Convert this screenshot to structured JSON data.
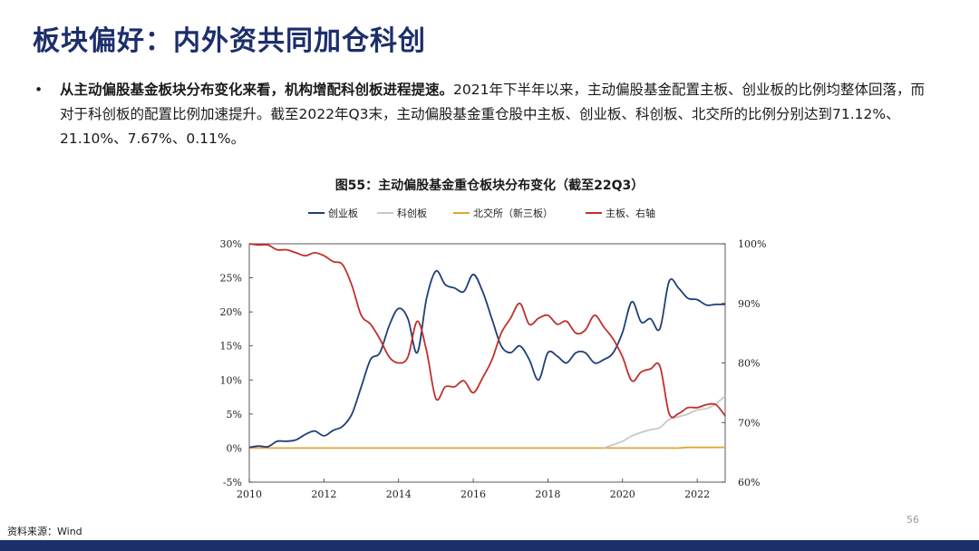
{
  "slide": {
    "title": "板块偏好：内外资共同加仓科创",
    "bullet_dot": "•",
    "bullet_bold": "从主动偏股基金板块分布变化来看，机构增配科创板进程提速。",
    "bullet_rest": "2021年下半年以来，主动偏股基金配置主板、创业板的比例均整体回落，而对于科创板的配置比例加速提升。截至2022年Q3末，主动偏股基金重仓股中主板、创业板、科创板、北交所的比例分别达到71.12%、21.10%、7.67%、0.11%。",
    "figure_title": "图55：主动偏股基金重仓板块分布变化（截至22Q3）",
    "source": "资料来源：Wind",
    "page_number": "56"
  },
  "colors": {
    "title": "#1c2f6b",
    "footer_bar": "#1c2f6b",
    "chinext": "#1f3f7a",
    "star": "#c8c8c8",
    "bse": "#e3a730",
    "main": "#c0302b"
  },
  "chart_data": {
    "type": "line",
    "title": "图55：主动偏股基金重仓板块分布变化（截至22Q3）",
    "legend_position": "top",
    "grid": false,
    "x_axis": {
      "range": [
        2010,
        2022.75
      ],
      "ticks": [
        "2010",
        "2012",
        "2014",
        "2016",
        "2018",
        "2020",
        "2022"
      ]
    },
    "y_left": {
      "range": [
        -5,
        30
      ],
      "ticks": [
        "-5%",
        "0%",
        "5%",
        "10%",
        "15%",
        "20%",
        "25%",
        "30%"
      ]
    },
    "y_right": {
      "range": [
        60,
        100
      ],
      "ticks": [
        "60%",
        "70%",
        "80%",
        "90%",
        "100%"
      ]
    },
    "x": [
      2010.0,
      2010.25,
      2010.5,
      2010.75,
      2011.0,
      2011.25,
      2011.5,
      2011.75,
      2012.0,
      2012.25,
      2012.5,
      2012.75,
      2013.0,
      2013.25,
      2013.5,
      2013.75,
      2014.0,
      2014.25,
      2014.5,
      2014.75,
      2015.0,
      2015.25,
      2015.5,
      2015.75,
      2016.0,
      2016.25,
      2016.5,
      2016.75,
      2017.0,
      2017.25,
      2017.5,
      2017.75,
      2018.0,
      2018.25,
      2018.5,
      2018.75,
      2019.0,
      2019.25,
      2019.5,
      2019.75,
      2020.0,
      2020.25,
      2020.5,
      2020.75,
      2021.0,
      2021.25,
      2021.5,
      2021.75,
      2022.0,
      2022.25,
      2022.5,
      2022.75
    ],
    "series": [
      {
        "name": "创业板",
        "axis": "left",
        "color": "#1f3f7a",
        "values": [
          0.1,
          0.3,
          0.2,
          1.0,
          1.0,
          1.2,
          2.0,
          2.5,
          1.8,
          2.6,
          3.2,
          5.0,
          9.0,
          13.0,
          14.0,
          18.0,
          20.5,
          19.0,
          14.0,
          22.0,
          26.0,
          24.0,
          23.5,
          23.0,
          25.5,
          23.0,
          19.0,
          15.0,
          14.0,
          15.0,
          13.0,
          10.0,
          14.0,
          13.5,
          12.5,
          14.0,
          14.0,
          12.5,
          13.0,
          14.0,
          17.0,
          21.5,
          18.5,
          19.0,
          17.5,
          24.5,
          23.5,
          22.0,
          21.8,
          21.0,
          21.1,
          21.1
        ]
      },
      {
        "name": "科创板",
        "axis": "left",
        "color": "#c8c8c8",
        "values": [
          null,
          null,
          null,
          null,
          null,
          null,
          null,
          null,
          null,
          null,
          null,
          null,
          null,
          null,
          null,
          null,
          null,
          null,
          null,
          null,
          null,
          null,
          null,
          null,
          null,
          null,
          null,
          null,
          null,
          null,
          null,
          null,
          null,
          null,
          null,
          null,
          null,
          null,
          0.0,
          0.5,
          1.0,
          1.8,
          2.3,
          2.7,
          3.0,
          4.2,
          4.6,
          5.0,
          5.6,
          5.8,
          6.5,
          7.67
        ]
      },
      {
        "name": "北交所（新三板）",
        "axis": "left",
        "color": "#e3a730",
        "values": [
          0.0,
          0.0,
          0.0,
          0.0,
          0.0,
          0.0,
          0.0,
          0.0,
          0.0,
          0.0,
          0.0,
          0.0,
          0.0,
          0.0,
          0.0,
          0.0,
          0.0,
          0.0,
          0.0,
          0.0,
          0.0,
          0.0,
          0.0,
          0.0,
          0.0,
          0.0,
          0.0,
          0.0,
          0.0,
          0.0,
          0.0,
          0.0,
          0.0,
          0.0,
          0.0,
          0.0,
          0.0,
          0.0,
          0.0,
          0.0,
          0.0,
          0.0,
          0.0,
          0.0,
          0.0,
          0.0,
          0.0,
          0.1,
          0.1,
          0.1,
          0.1,
          0.11
        ]
      },
      {
        "name": "主板、右轴",
        "axis": "right",
        "color": "#c0302b",
        "values": [
          100.0,
          99.8,
          99.8,
          99.0,
          99.0,
          98.5,
          98.0,
          98.5,
          98.0,
          97.0,
          96.5,
          93.0,
          88.0,
          86.5,
          84.0,
          81.0,
          80.0,
          81.0,
          87.0,
          82.0,
          74.0,
          76.0,
          76.0,
          77.0,
          75.0,
          77.5,
          80.5,
          85.0,
          87.5,
          90.0,
          86.5,
          87.5,
          88.0,
          86.5,
          87.0,
          85.0,
          85.5,
          88.0,
          86.0,
          84.0,
          81.0,
          77.0,
          78.5,
          79.0,
          79.5,
          71.5,
          71.5,
          72.5,
          72.5,
          73.0,
          73.0,
          71.12
        ]
      }
    ]
  }
}
